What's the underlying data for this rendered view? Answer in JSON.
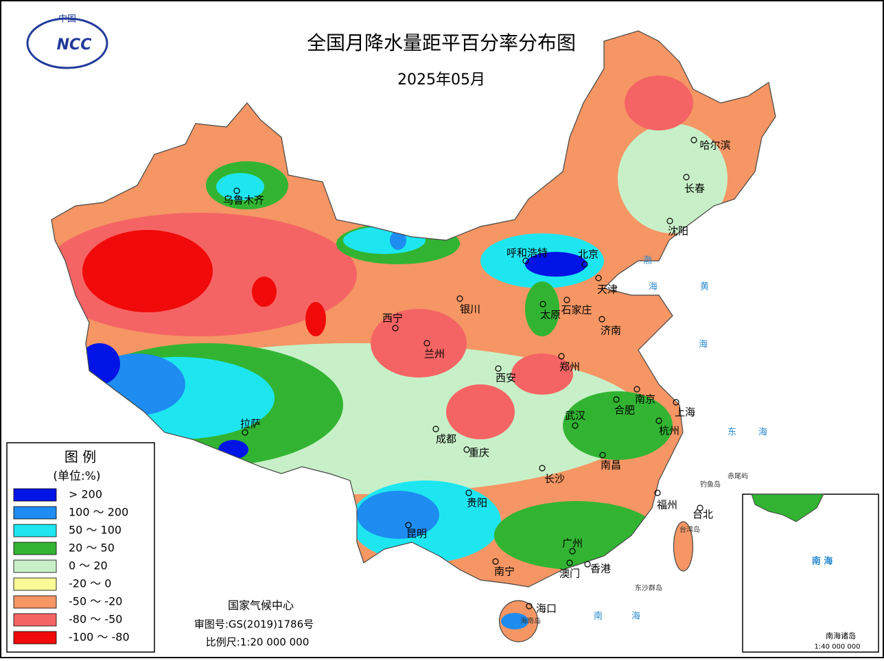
{
  "header": {
    "title": "全国月降水量距平百分率分布图",
    "subtitle": "2025年05月",
    "logo_top": "中国",
    "logo": "NCC"
  },
  "legend": {
    "title": "图 例",
    "unit": "(单位:%)",
    "items": [
      {
        "label": "> 200",
        "color": "#0014e6"
      },
      {
        "label": "100 ～ 200",
        "color": "#1e8cf0"
      },
      {
        "label": "50 ～ 100",
        "color": "#1ee6f0"
      },
      {
        "label": "20 ～ 50",
        "color": "#32b432"
      },
      {
        "label": "0 ～ 20",
        "color": "#c8f0c8"
      },
      {
        "label": "-20 ～ 0",
        "color": "#fafa96"
      },
      {
        "label": "-50 ～ -20",
        "color": "#f59664"
      },
      {
        "label": "-80 ～ -50",
        "color": "#f56464"
      },
      {
        "label": "-100 ～ -80",
        "color": "#f00a0a"
      }
    ]
  },
  "cities": [
    "乌鲁木齐",
    "呼和浩特",
    "北京",
    "天津",
    "石家庄",
    "太原",
    "济南",
    "银川",
    "西宁",
    "兰州",
    "郑州",
    "西安",
    "南京",
    "合肥",
    "上海",
    "武汉",
    "杭州",
    "成都",
    "重庆",
    "拉萨",
    "南昌",
    "长沙",
    "贵阳",
    "福州",
    "台北",
    "昆明",
    "广州",
    "南宁",
    "澳门",
    "香港",
    "海口",
    "哈尔滨",
    "长春",
    "沈阳"
  ],
  "seas": [
    "渤",
    "海",
    "黄",
    "海",
    "东",
    "海",
    "南",
    "海"
  ],
  "islands": [
    "钓鱼岛",
    "赤尾屿",
    "台湾岛",
    "东沙群岛",
    "海南岛"
  ],
  "inset": {
    "sea": "南 海",
    "islands": "南海诸岛",
    "scale": "1:40 000 000"
  },
  "footer": {
    "org": "国家气候中心",
    "approval": "审图号:GS(2019)1786号",
    "scale": "比例尺:1:20 000 000"
  }
}
